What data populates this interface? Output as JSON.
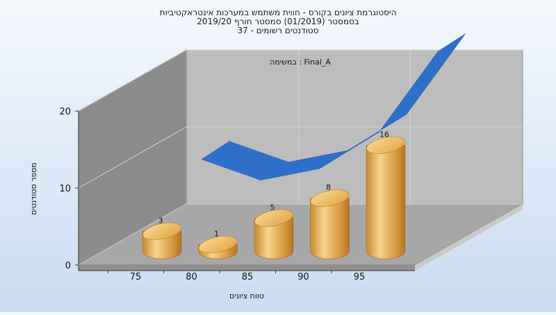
{
  "chart_data": {
    "type": "bar",
    "title_lines": [
      "היסטוגרמת ציונים בקורס - חווית משתמש במערכות אינטראקטיביות",
      "בסמסטר  (01/2019)  סמסטר חורף 2019/20",
      "סטודנטים רשומים - 37"
    ],
    "annotation": "במשימה : Final_A",
    "categories": [
      "75",
      "80",
      "85",
      "90",
      "95"
    ],
    "values": [
      3,
      1,
      5,
      8,
      16
    ],
    "trend": [
      8.5,
      5.8,
      7.3,
      12.0,
      22.5
    ],
    "x_ticks": [
      "75",
      "80",
      "85",
      "90",
      "95"
    ],
    "y_ticks": [
      "0",
      "10",
      "20"
    ],
    "ylim": [
      0,
      20
    ],
    "xlabel": "טווח ציונים",
    "ylabel": "מספר סטודנטים",
    "colors": {
      "bar_light": "#f6d08a",
      "bar_mid": "#e3a64a",
      "bar_dark": "#b57a25",
      "trend": "#2e6fc9",
      "back_wall": "#b9b9b9",
      "side_wall": "#8a8a8a",
      "floor": "#a5a5a5"
    }
  }
}
